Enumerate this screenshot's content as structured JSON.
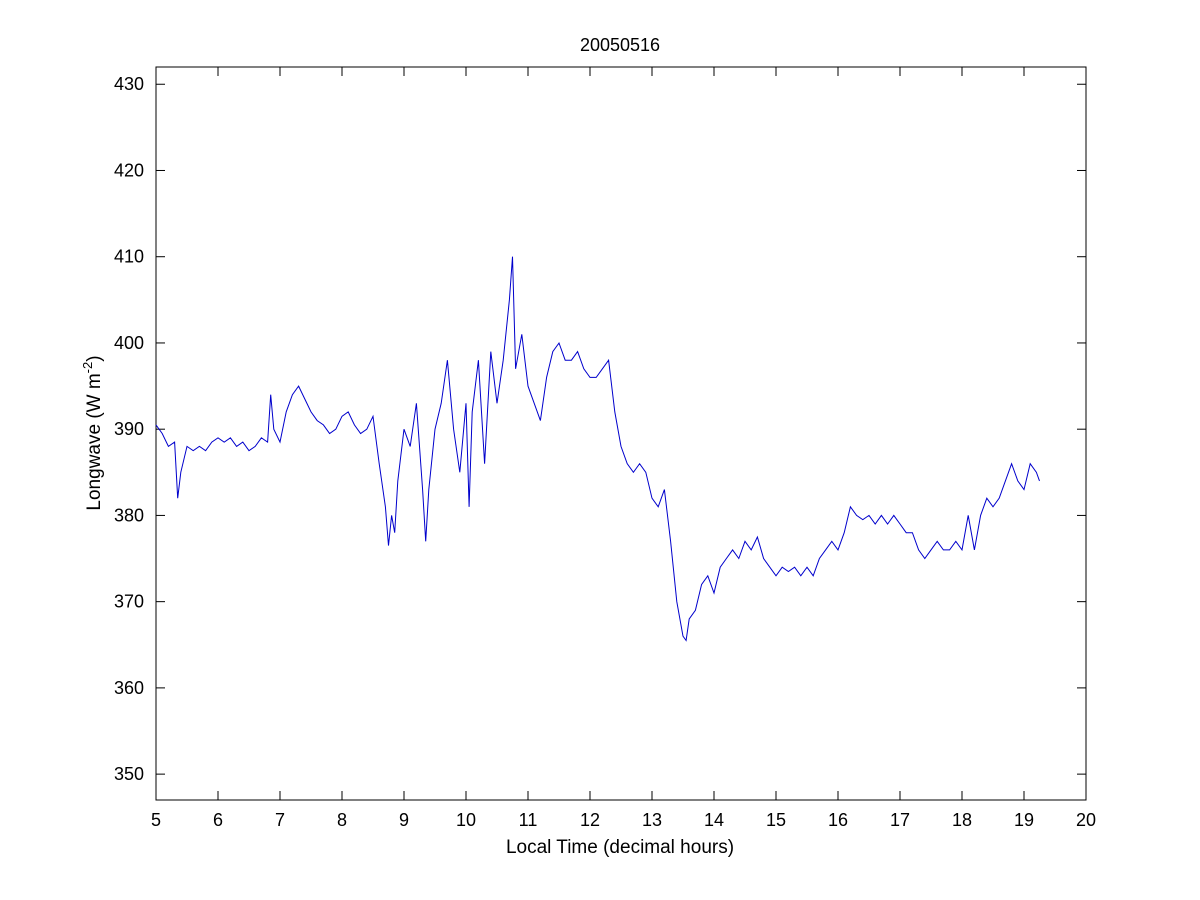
{
  "chart_data": {
    "type": "line",
    "title": "20050516",
    "xlabel": "Local Time (decimal hours)",
    "ylabel": {
      "prefix": "Longwave (W m",
      "superscript": "-2",
      "suffix": ")"
    },
    "xlim": [
      5,
      20
    ],
    "ylim": [
      347,
      432
    ],
    "xticks": [
      5,
      6,
      7,
      8,
      9,
      10,
      11,
      12,
      13,
      14,
      15,
      16,
      17,
      18,
      19,
      20
    ],
    "yticks": [
      350,
      360,
      370,
      380,
      390,
      400,
      410,
      420,
      430
    ],
    "grid": false,
    "line_color": "#0000cc",
    "series": [
      {
        "x": [
          5.0,
          5.1,
          5.2,
          5.3,
          5.35,
          5.4,
          5.5,
          5.6,
          5.7,
          5.8,
          5.9,
          6.0,
          6.1,
          6.2,
          6.3,
          6.4,
          6.5,
          6.6,
          6.7,
          6.8,
          6.85,
          6.9,
          7.0,
          7.1,
          7.2,
          7.3,
          7.4,
          7.5,
          7.6,
          7.7,
          7.8,
          7.9,
          8.0,
          8.1,
          8.2,
          8.3,
          8.4,
          8.5,
          8.6,
          8.7,
          8.75,
          8.8,
          8.85,
          8.9,
          9.0,
          9.1,
          9.2,
          9.3,
          9.35,
          9.4,
          9.5,
          9.6,
          9.7,
          9.8,
          9.9,
          10.0,
          10.05,
          10.1,
          10.2,
          10.3,
          10.4,
          10.5,
          10.6,
          10.7,
          10.75,
          10.8,
          10.9,
          11.0,
          11.1,
          11.2,
          11.3,
          11.4,
          11.5,
          11.6,
          11.7,
          11.8,
          11.9,
          12.0,
          12.1,
          12.2,
          12.3,
          12.4,
          12.5,
          12.6,
          12.7,
          12.8,
          12.9,
          13.0,
          13.1,
          13.2,
          13.3,
          13.4,
          13.5,
          13.55,
          13.6,
          13.7,
          13.8,
          13.9,
          14.0,
          14.1,
          14.2,
          14.3,
          14.4,
          14.5,
          14.6,
          14.7,
          14.8,
          14.9,
          15.0,
          15.1,
          15.2,
          15.3,
          15.4,
          15.5,
          15.6,
          15.7,
          15.8,
          15.9,
          16.0,
          16.1,
          16.2,
          16.3,
          16.4,
          16.5,
          16.6,
          16.7,
          16.8,
          16.9,
          17.0,
          17.1,
          17.2,
          17.3,
          17.4,
          17.5,
          17.6,
          17.7,
          17.8,
          17.9,
          18.0,
          18.1,
          18.2,
          18.3,
          18.4,
          18.5,
          18.6,
          18.7,
          18.8,
          18.9,
          19.0,
          19.1,
          19.2,
          19.25
        ],
        "y": [
          390.5,
          389.5,
          388.0,
          388.5,
          382.0,
          385.0,
          388.0,
          387.5,
          388.0,
          387.5,
          388.5,
          389.0,
          388.5,
          389.0,
          388.0,
          388.5,
          387.5,
          388.0,
          389.0,
          388.5,
          394.0,
          390.0,
          388.5,
          392.0,
          394.0,
          395.0,
          393.5,
          392.0,
          391.0,
          390.5,
          389.5,
          390.0,
          391.5,
          392.0,
          390.5,
          389.5,
          390.0,
          391.5,
          386.0,
          381.0,
          376.5,
          380.0,
          378.0,
          384.0,
          390.0,
          388.0,
          393.0,
          383.0,
          377.0,
          383.0,
          390.0,
          393.0,
          398.0,
          390.0,
          385.0,
          393.0,
          381.0,
          392.0,
          398.0,
          386.0,
          399.0,
          393.0,
          398.0,
          405.0,
          410.0,
          397.0,
          401.0,
          395.0,
          393.0,
          391.0,
          396.0,
          399.0,
          400.0,
          398.0,
          398.0,
          399.0,
          397.0,
          396.0,
          396.0,
          397.0,
          398.0,
          392.0,
          388.0,
          386.0,
          385.0,
          386.0,
          385.0,
          382.0,
          381.0,
          383.0,
          377.0,
          370.0,
          366.0,
          365.5,
          368.0,
          369.0,
          372.0,
          373.0,
          371.0,
          374.0,
          375.0,
          376.0,
          375.0,
          377.0,
          376.0,
          377.5,
          375.0,
          374.0,
          373.0,
          374.0,
          373.5,
          374.0,
          373.0,
          374.0,
          373.0,
          375.0,
          376.0,
          377.0,
          376.0,
          378.0,
          381.0,
          380.0,
          379.5,
          380.0,
          379.0,
          380.0,
          379.0,
          380.0,
          379.0,
          378.0,
          378.0,
          376.0,
          375.0,
          376.0,
          377.0,
          376.0,
          376.0,
          377.0,
          376.0,
          380.0,
          376.0,
          380.0,
          382.0,
          381.0,
          382.0,
          384.0,
          386.0,
          384.0,
          383.0,
          386.0,
          385.0,
          384.0
        ]
      }
    ]
  }
}
